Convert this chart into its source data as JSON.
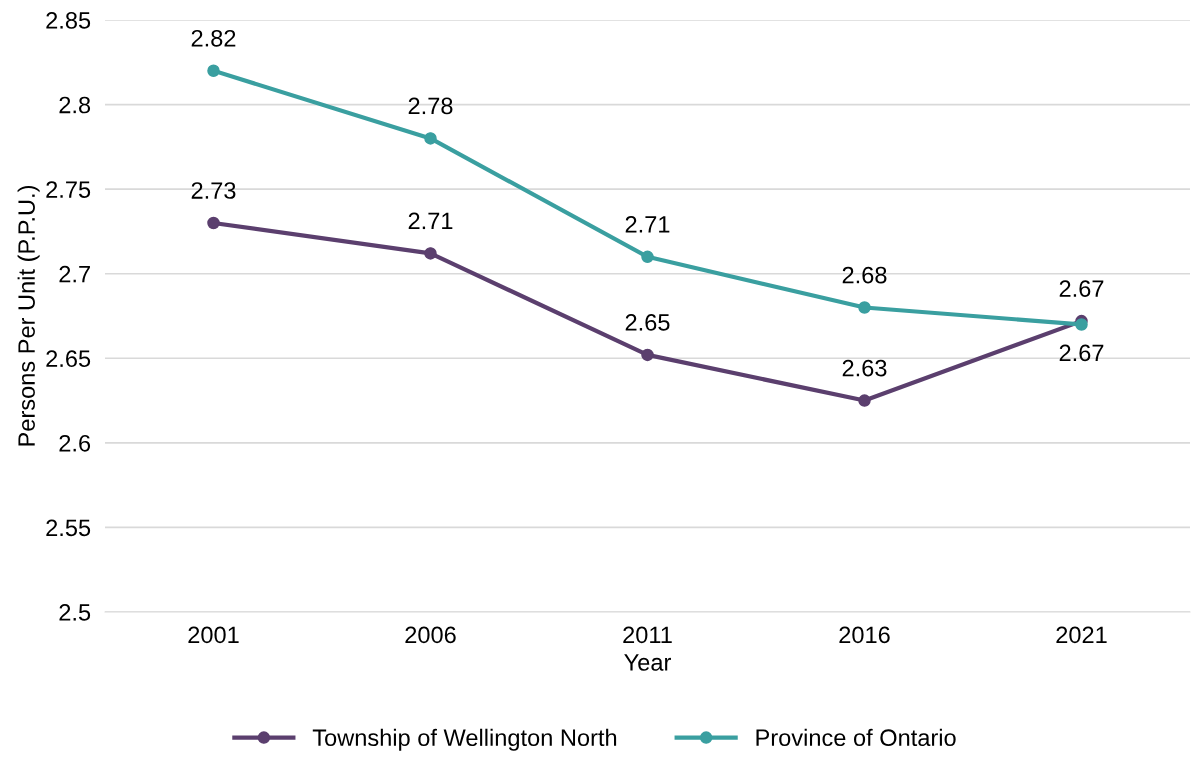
{
  "chart_data": {
    "type": "line",
    "xlabel": "Year",
    "ylabel": "Persons Per Unit (P.P.U.)",
    "categories": [
      "2001",
      "2006",
      "2011",
      "2016",
      "2021"
    ],
    "series": [
      {
        "name": "Township of Wellington North",
        "color": "#5b3f6e",
        "values": [
          2.73,
          2.712,
          2.652,
          2.625,
          2.672
        ],
        "value_labels": [
          "2.73",
          "2.71",
          "2.65",
          "2.63",
          "2.67"
        ]
      },
      {
        "name": "Province of Ontario",
        "color": "#3a9fa0",
        "values": [
          2.82,
          2.78,
          2.71,
          2.68,
          2.67
        ],
        "value_labels": [
          "2.82",
          "2.78",
          "2.71",
          "2.68",
          "2.67"
        ]
      }
    ],
    "ylim": [
      2.5,
      2.85
    ],
    "yticks": [
      2.5,
      2.55,
      2.6,
      2.65,
      2.7,
      2.75,
      2.8,
      2.85
    ],
    "grid": "y",
    "legend": "bottom",
    "marker": "circle",
    "line_style": "solid"
  }
}
